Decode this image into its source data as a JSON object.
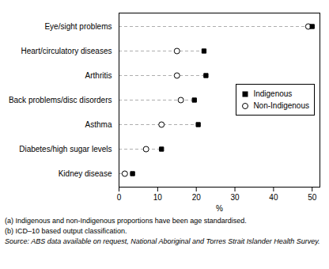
{
  "chart_data": {
    "type": "dot",
    "orientation": "horizontal",
    "categories": [
      "Eye/sight problems",
      "Heart/circulatory diseases",
      "Arthritis",
      "Back problems/disc disorders",
      "Asthma",
      "Diabetes/high sugar levels",
      "Kidney disease"
    ],
    "series": [
      {
        "name": "Indigenous",
        "color": "black",
        "marker": "square",
        "values": [
          50.0,
          22.0,
          22.5,
          19.5,
          20.5,
          11.0,
          3.5
        ]
      },
      {
        "name": "Non-Indigenous",
        "color": "black",
        "marker": "open-circle",
        "values": [
          49.0,
          15.0,
          15.0,
          16.0,
          11.0,
          7.0,
          1.5
        ]
      }
    ],
    "xlabel": "%",
    "xlim": [
      0,
      52
    ],
    "xticks": [
      0,
      10,
      20,
      30,
      40,
      50
    ],
    "grid": false,
    "legend": "right",
    "annotations": [
      "(a)  Indigenous and non-Indigenous proportions have been age standardised.",
      "(b)  ICD–10 based output classification.",
      "Source:  ABS data available on request, National Aboriginal and Torres Strait Islander Health Survey."
    ]
  }
}
